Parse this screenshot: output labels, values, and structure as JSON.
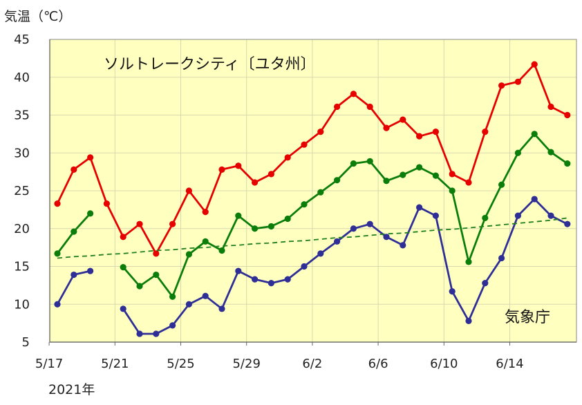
{
  "chart_data": {
    "type": "line",
    "title": "ソルトレークシティ〔ユタ州〕",
    "ylabel": "気温（℃）",
    "year_label": "2021年",
    "source": "気象庁",
    "ylim": [
      5,
      45
    ],
    "y_ticks": [
      "45",
      "40",
      "35",
      "30",
      "25",
      "20",
      "15",
      "10",
      "5"
    ],
    "x_ticks": [
      "5/17",
      "5/21",
      "5/25",
      "5/29",
      "6/2",
      "6/6",
      "6/10",
      "6/14"
    ],
    "x": [
      "5/17",
      "5/18",
      "5/19",
      "5/20",
      "5/21",
      "5/22",
      "5/23",
      "5/24",
      "5/25",
      "5/26",
      "5/27",
      "5/28",
      "5/29",
      "5/30",
      "5/31",
      "6/1",
      "6/2",
      "6/3",
      "6/4",
      "6/5",
      "6/6",
      "6/7",
      "6/8",
      "6/9",
      "6/10",
      "6/11",
      "6/12",
      "6/13",
      "6/14",
      "6/15",
      "6/16",
      "6/17"
    ],
    "grid": true,
    "background": "#ffffc0",
    "series": [
      {
        "color": "#e60000",
        "values": [
          23.3,
          27.8,
          29.4,
          23.3,
          18.9,
          20.6,
          16.7,
          20.6,
          25.0,
          22.2,
          27.8,
          28.3,
          26.1,
          27.2,
          29.4,
          31.1,
          32.8,
          36.1,
          37.8,
          36.1,
          33.3,
          34.4,
          32.2,
          32.8,
          27.2,
          26.1,
          32.8,
          38.9,
          39.4,
          41.7,
          36.1,
          35.0
        ]
      },
      {
        "color": "#0a7d0a",
        "values": [
          16.7,
          19.6,
          22.0,
          null,
          14.9,
          12.4,
          13.9,
          11.0,
          16.6,
          18.3,
          17.1,
          21.7,
          20.0,
          20.3,
          21.3,
          23.2,
          24.8,
          26.4,
          28.6,
          28.9,
          26.3,
          27.1,
          28.1,
          27.0,
          25.0,
          15.6,
          21.4,
          25.8,
          30.0,
          32.5,
          30.1,
          28.6
        ]
      },
      {
        "color": "#2e2e96",
        "values": [
          10.0,
          13.9,
          14.4,
          null,
          9.4,
          6.1,
          6.1,
          7.2,
          10.0,
          11.1,
          9.4,
          14.4,
          13.3,
          12.8,
          13.3,
          15.0,
          16.7,
          18.3,
          20.0,
          20.6,
          18.9,
          17.8,
          22.8,
          21.7,
          11.7,
          7.8,
          12.8,
          16.1,
          21.7,
          23.9,
          21.7,
          20.6
        ]
      },
      {
        "color": "#1f7f1f",
        "dashed": true,
        "values": [
          16.1,
          16.3,
          16.4,
          16.6,
          16.7,
          16.9,
          17.1,
          17.2,
          17.4,
          17.5,
          17.7,
          17.8,
          18.0,
          18.1,
          18.3,
          18.4,
          18.6,
          18.8,
          18.9,
          19.1,
          19.3,
          19.4,
          19.6,
          19.8,
          19.9,
          20.1,
          20.3,
          20.5,
          20.7,
          20.9,
          21.1,
          21.4
        ]
      }
    ]
  }
}
